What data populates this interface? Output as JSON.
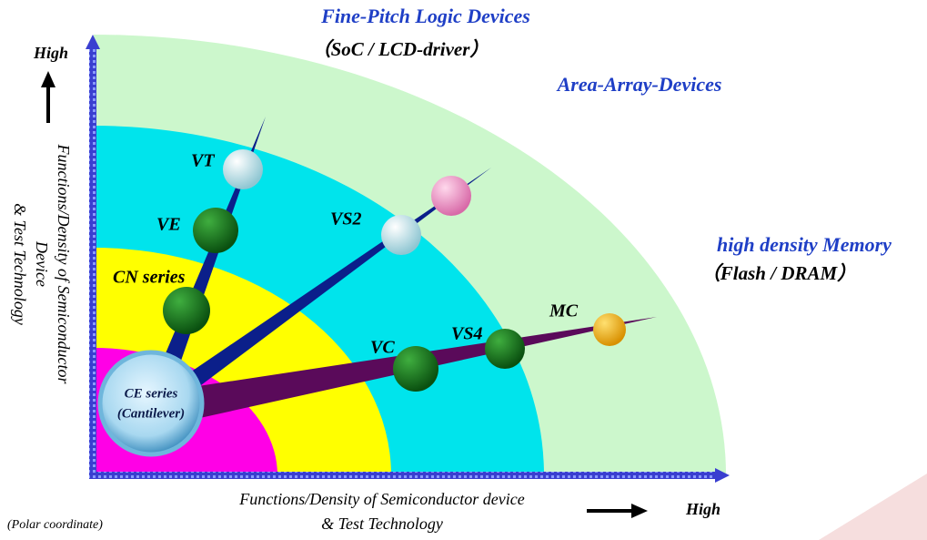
{
  "header": {
    "fine_pitch": "Fine-Pitch Logic Devices",
    "fine_pitch_sub": "（SoC / LCD-driver）",
    "area_array": "Area-Array-Devices",
    "memory": "high density Memory",
    "memory_sub": "（Flash / DRAM）"
  },
  "axes": {
    "y_high": "High",
    "y_label": [
      "Functions/Density of Semiconductor",
      "Device",
      "& Test Technology"
    ],
    "x_high": "High",
    "x_label": [
      "Functions/Density of Semiconductor device",
      "& Test Technology"
    ],
    "note": "(Polar coordinate)"
  },
  "nodes": [
    {
      "label": "VT"
    },
    {
      "label": "VE"
    },
    {
      "label": "CN series"
    },
    {
      "label": "VS2"
    },
    {
      "label": "VC"
    },
    {
      "label": "VS4"
    },
    {
      "label": "MC"
    }
  ],
  "center": {
    "label": "CE series",
    "sub": "(Cantilever)"
  }
}
